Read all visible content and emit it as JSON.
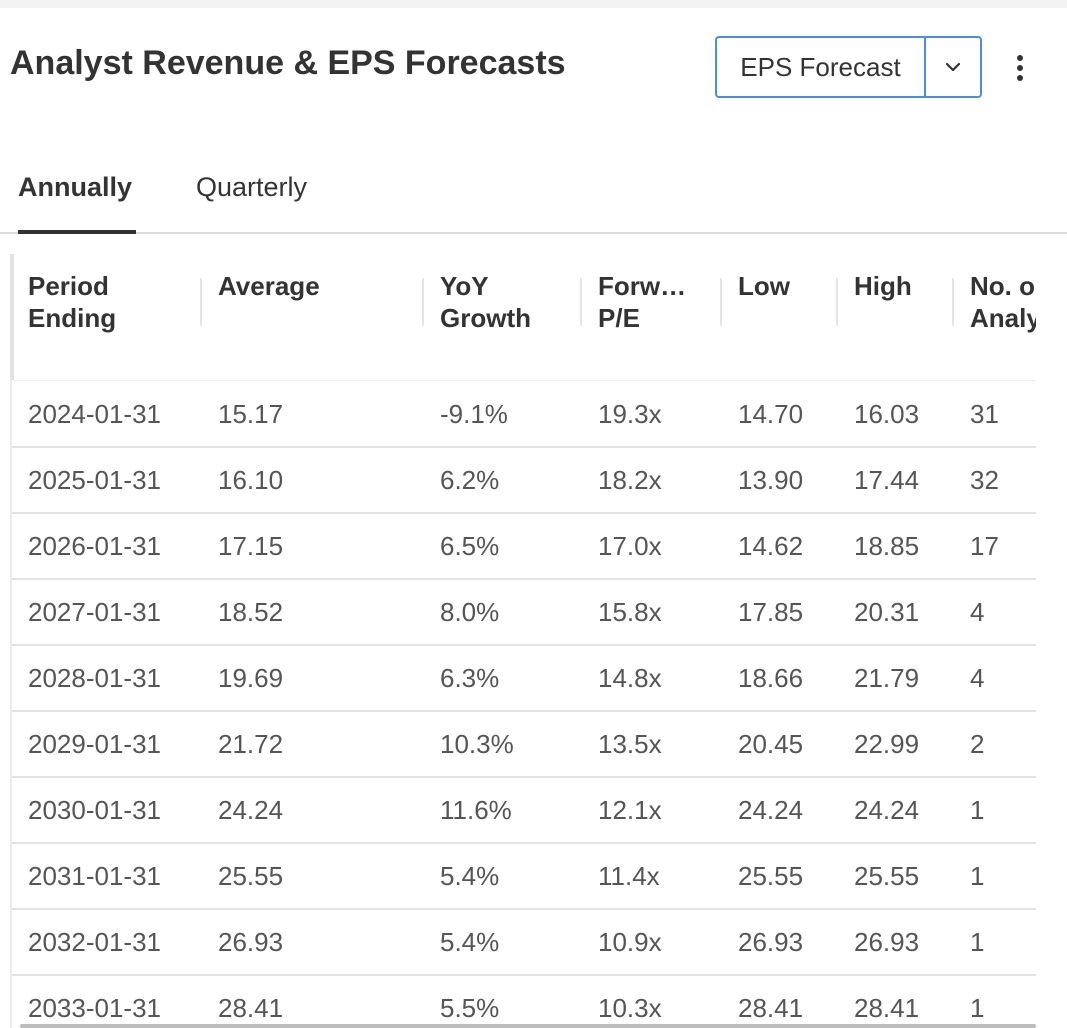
{
  "header": {
    "title": "Analyst Revenue & EPS Forecasts",
    "dropdown_value": "EPS Forecast",
    "dropdown_icon": "chevron-down-icon",
    "menu_icon": "more-vertical-icon"
  },
  "tabs": [
    {
      "label": "Annually",
      "active": true
    },
    {
      "label": "Quarterly",
      "active": false
    }
  ],
  "table": {
    "columns": [
      {
        "line1": "Period",
        "line2": "Ending"
      },
      {
        "line1": "Average",
        "line2": ""
      },
      {
        "line1": "YoY",
        "line2": "Growth"
      },
      {
        "line1": "Forw…",
        "line2": "P/E"
      },
      {
        "line1": "Low",
        "line2": ""
      },
      {
        "line1": "High",
        "line2": ""
      },
      {
        "line1": "No. o",
        "line2": "Analy"
      }
    ],
    "rows": [
      [
        "2024-01-31",
        "15.17",
        "-9.1%",
        "19.3x",
        "14.70",
        "16.03",
        "31"
      ],
      [
        "2025-01-31",
        "16.10",
        "6.2%",
        "18.2x",
        "13.90",
        "17.44",
        "32"
      ],
      [
        "2026-01-31",
        "17.15",
        "6.5%",
        "17.0x",
        "14.62",
        "18.85",
        "17"
      ],
      [
        "2027-01-31",
        "18.52",
        "8.0%",
        "15.8x",
        "17.85",
        "20.31",
        "4"
      ],
      [
        "2028-01-31",
        "19.69",
        "6.3%",
        "14.8x",
        "18.66",
        "21.79",
        "4"
      ],
      [
        "2029-01-31",
        "21.72",
        "10.3%",
        "13.5x",
        "20.45",
        "22.99",
        "2"
      ],
      [
        "2030-01-31",
        "24.24",
        "11.6%",
        "12.1x",
        "24.24",
        "24.24",
        "1"
      ],
      [
        "2031-01-31",
        "25.55",
        "5.4%",
        "11.4x",
        "25.55",
        "25.55",
        "1"
      ],
      [
        "2032-01-31",
        "26.93",
        "5.4%",
        "10.9x",
        "26.93",
        "26.93",
        "1"
      ],
      [
        "2033-01-31",
        "28.41",
        "5.5%",
        "10.3x",
        "28.41",
        "28.41",
        "1"
      ]
    ]
  },
  "colors": {
    "accent": "#4a90d9",
    "text": "#333333",
    "cell_text": "#555555",
    "border": "#e3e3e3"
  }
}
